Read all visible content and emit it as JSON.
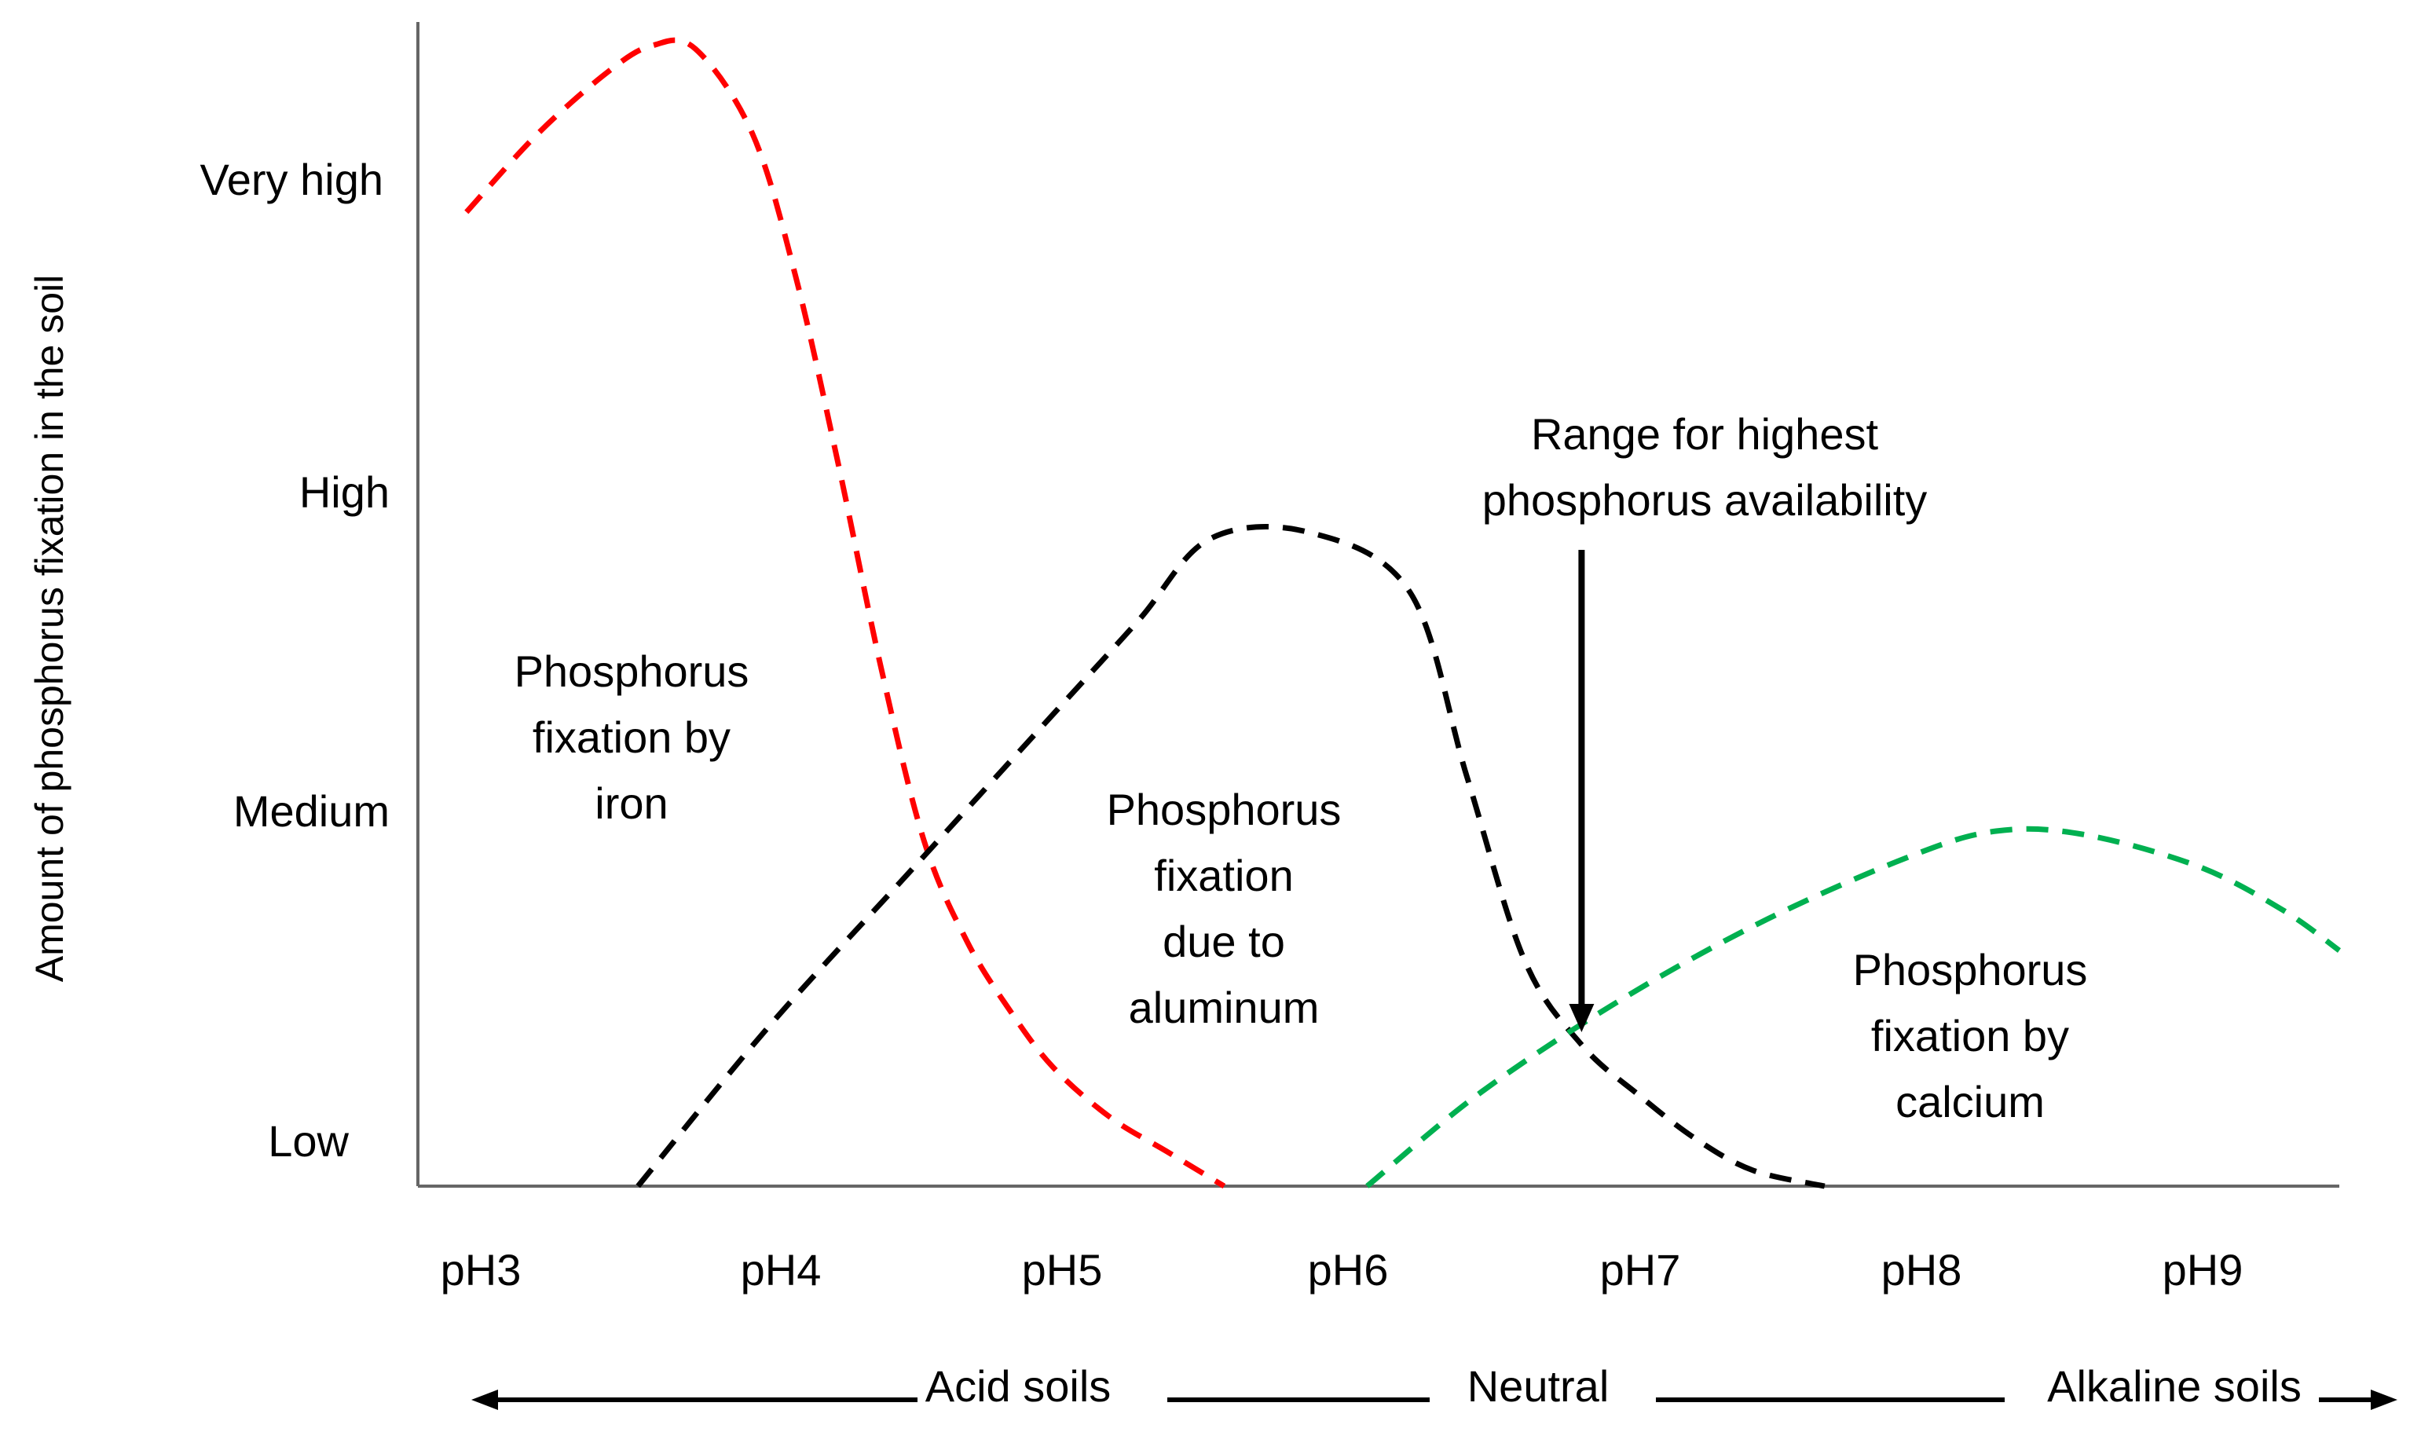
{
  "chart_data": {
    "type": "line",
    "title": "",
    "ylabel": "Amount of phosphorus fixation in the soil",
    "xlabel": "",
    "x_categories": [
      "pH3",
      "pH4",
      "pH5",
      "pH6",
      "pH7",
      "pH8",
      "pH9"
    ],
    "x_range": [
      3,
      9.6
    ],
    "y_categories": [
      "Low",
      "Medium",
      "High",
      "Very high"
    ],
    "y_range": [
      0,
      3.7
    ],
    "grid": false,
    "series": [
      {
        "name": "Phosphorus fixation by iron",
        "color": "#ff0000",
        "style": "dashed",
        "points": [
          [
            2.95,
            3.1
          ],
          [
            3.2,
            3.35
          ],
          [
            3.45,
            3.55
          ],
          [
            3.6,
            3.63
          ],
          [
            3.75,
            3.62
          ],
          [
            3.95,
            3.35
          ],
          [
            4.1,
            2.9
          ],
          [
            4.25,
            2.3
          ],
          [
            4.4,
            1.65
          ],
          [
            4.55,
            1.1
          ],
          [
            4.7,
            0.78
          ],
          [
            4.85,
            0.56
          ],
          [
            5.0,
            0.38
          ],
          [
            5.2,
            0.22
          ],
          [
            5.4,
            0.11
          ],
          [
            5.6,
            0.0
          ]
        ]
      },
      {
        "name": "Phosphorus fixation due to aluminum",
        "color": "#000000",
        "style": "dashed",
        "points": [
          [
            3.55,
            0.0
          ],
          [
            4.0,
            0.5
          ],
          [
            4.5,
            1.0
          ],
          [
            5.0,
            1.5
          ],
          [
            5.3,
            1.8
          ],
          [
            5.55,
            2.06
          ],
          [
            5.9,
            2.08
          ],
          [
            6.25,
            1.89
          ],
          [
            6.45,
            1.3
          ],
          [
            6.65,
            0.72
          ],
          [
            6.85,
            0.45
          ],
          [
            7.05,
            0.29
          ],
          [
            7.25,
            0.15
          ],
          [
            7.45,
            0.05
          ],
          [
            7.7,
            0.0
          ]
        ]
      },
      {
        "name": "Phosphorus fixation by calcium",
        "color": "#00b050",
        "style": "dashed",
        "points": [
          [
            6.1,
            0.0
          ],
          [
            6.5,
            0.3
          ],
          [
            7.0,
            0.6
          ],
          [
            7.5,
            0.85
          ],
          [
            8.0,
            1.05
          ],
          [
            8.3,
            1.13
          ],
          [
            8.6,
            1.12
          ],
          [
            9.0,
            1.02
          ],
          [
            9.3,
            0.88
          ],
          [
            9.5,
            0.75
          ]
        ]
      }
    ],
    "annotations": {
      "iron": [
        "Phosphorus",
        "fixation by",
        "iron"
      ],
      "aluminum": [
        "Phosphorus",
        "fixation",
        "due to",
        "aluminum"
      ],
      "calcium": [
        "Phosphorus",
        "fixation by",
        "calcium"
      ],
      "range": [
        "Range for highest",
        "phosphorus availability"
      ],
      "range_arrow_x": 6.85
    },
    "soil_scale": {
      "acid": "Acid soils",
      "neutral": "Neutral",
      "alkaline": "Alkaline soils"
    }
  }
}
